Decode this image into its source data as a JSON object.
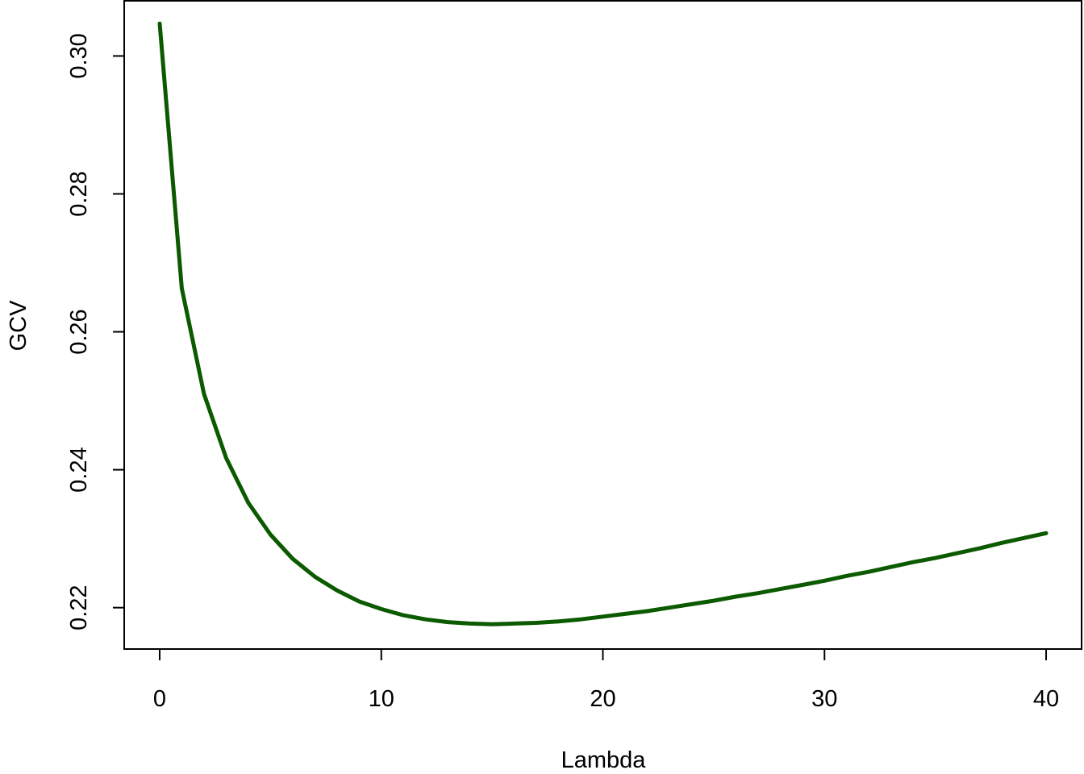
{
  "chart_data": {
    "type": "line",
    "title": "",
    "xlabel": "Lambda",
    "ylabel": "GCV",
    "xlim": [
      -1.6,
      41.6
    ],
    "ylim": [
      0.214,
      0.308
    ],
    "x_ticks": [
      0,
      10,
      20,
      30,
      40
    ],
    "x_tick_labels": [
      "0",
      "10",
      "20",
      "30",
      "40"
    ],
    "y_ticks": [
      0.22,
      0.24,
      0.26,
      0.28,
      0.3
    ],
    "y_tick_labels": [
      "0.22",
      "0.24",
      "0.26",
      "0.28",
      "0.30"
    ],
    "grid": false,
    "legend": "none",
    "series": [
      {
        "color": "#0b5a00",
        "x": [
          0,
          1,
          2,
          3,
          4,
          5,
          6,
          7,
          8,
          9,
          10,
          11,
          12,
          13,
          14,
          15,
          16,
          17,
          18,
          19,
          20,
          21,
          22,
          23,
          24,
          25,
          26,
          27,
          28,
          29,
          30,
          31,
          32,
          33,
          34,
          35,
          36,
          37,
          38,
          39,
          40
        ],
        "y": [
          0.3047,
          0.2663,
          0.251,
          0.2417,
          0.2352,
          0.2306,
          0.2271,
          0.2245,
          0.2225,
          0.2209,
          0.2198,
          0.2189,
          0.2183,
          0.2179,
          0.2177,
          0.2176,
          0.2177,
          0.2178,
          0.218,
          0.2183,
          0.2187,
          0.2191,
          0.2195,
          0.22,
          0.2205,
          0.221,
          0.2216,
          0.2221,
          0.2227,
          0.2233,
          0.2239,
          0.2246,
          0.2252,
          0.2259,
          0.2266,
          0.2272,
          0.2279,
          0.2286,
          0.2294,
          0.2301,
          0.2308
        ]
      }
    ]
  }
}
